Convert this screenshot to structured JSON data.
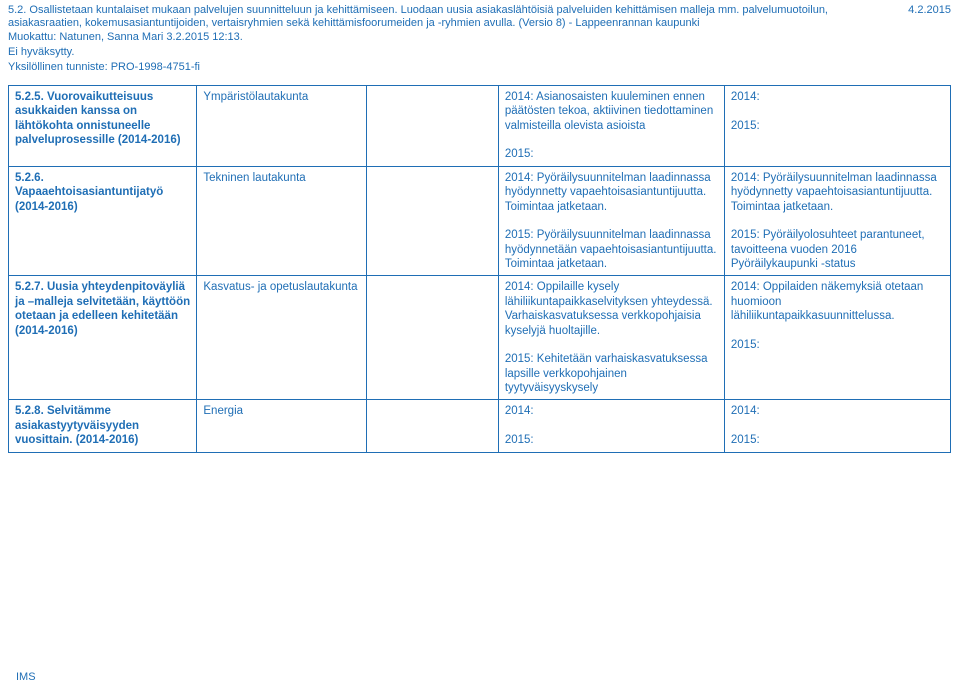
{
  "header": {
    "text": "5.2. Osallistetaan kuntalaiset mukaan palvelujen suunnitteluun ja kehittämiseen. Luodaan uusia asiakaslähtöisiä palveluiden kehittämisen malleja mm. palvelumuotoilun, asiakasraatien, kokemusasiantuntijoiden, vertaisryhmien sekä kehittämisfoorumeiden ja -ryhmien avulla. (Versio 8) - Lappeenrannan kaupunki",
    "date": "4.2.2015",
    "modified": "Muokattu: Natunen, Sanna Mari 3.2.2015 12:13.",
    "approval": "Ei hyväksytty.",
    "identifier": "Yksilöllinen tunniste: PRO-1998-4751-fi"
  },
  "rows": [
    {
      "c0": "5.2.5. Vuorovaikutteisuus asukkaiden kanssa on lähtökohta onnistuneelle palveluprosessille (2014-2016)",
      "c1": "Ympäristölautakunta",
      "c2": "",
      "c3": "2014: Asianosaisten kuuleminen ennen päätösten tekoa, aktiivinen tiedottaminen valmisteilla olevista asioista\n\n2015:",
      "c4": "2014:\n\n2015:"
    },
    {
      "c0": "5.2.6. Vapaaehtoisasiantuntijatyö (2014-2016)",
      "c1": "Tekninen lautakunta",
      "c2": "",
      "c3": "2014: Pyöräilysuunnitelman laadinnassa hyödynnetty vapaehtoisasiantuntijuutta. Toimintaa jatketaan.\n\n2015: Pyöräilysuunnitelman laadinnassa hyödynnetään vapaehtoisasiantuntijuutta. Toimintaa jatketaan.",
      "c4": "2014: Pyöräilysuunnitelman laadinnassa hyödynnetty vapaehtoisasiantuntijuutta. Toimintaa jatketaan.\n\n2015: Pyöräilyolosuhteet parantuneet, tavoitteena vuoden 2016 Pyöräilykaupunki -status"
    },
    {
      "c0": "5.2.7. Uusia yhteydenpitoväyliä ja –malleja selvitetään, käyttöön otetaan ja edelleen kehitetään (2014-2016)",
      "c1": "Kasvatus- ja opetuslautakunta",
      "c2": "",
      "c3": "2014: Oppilaille kysely lähiliikuntapaikkaselvityksen yhteydessä. Varhaiskasvatuksessa verkkopohjaisia kyselyjä huoltajille.\n\n2015: Kehitetään varhaiskasvatuksessa lapsille verkkopohjainen tyytyväisyyskysely",
      "c4": "2014: Oppilaiden näkemyksiä otetaan huomioon lähiliikuntapaikkasuunnittelussa.\n\n2015:"
    },
    {
      "c0": "5.2.8. Selvitämme asiakastyytyväisyyden vuosittain. (2014-2016)",
      "c1": "Energia",
      "c2": "",
      "c3": "2014:\n\n2015:",
      "c4": "2014:\n\n2015:"
    }
  ],
  "footer": "IMS"
}
